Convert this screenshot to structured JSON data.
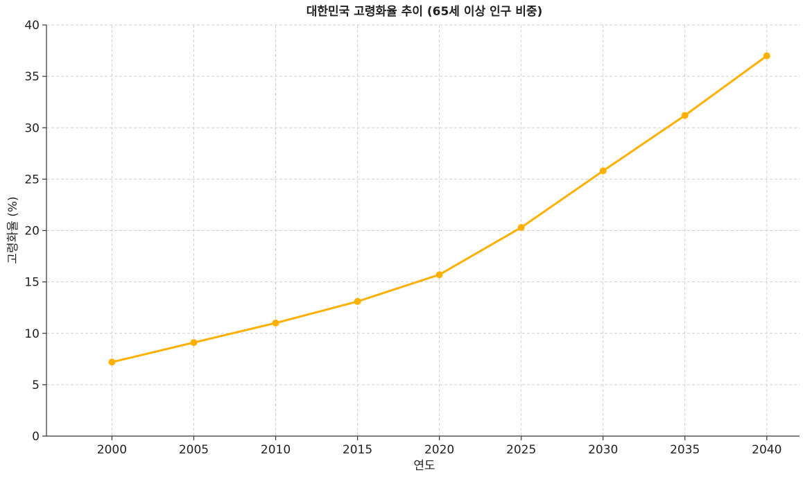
{
  "chart_data": {
    "type": "line",
    "title": "대한민국 고령화율 추이 (65세 이상 인구 비중)",
    "xlabel": "연도",
    "ylabel": "고령화율 (%)",
    "x": [
      2000,
      2005,
      2010,
      2015,
      2020,
      2025,
      2030,
      2035,
      2040
    ],
    "series": [
      {
        "values": [
          7.2,
          9.1,
          11.0,
          13.1,
          15.7,
          20.3,
          25.8,
          31.2,
          37.0
        ],
        "color": "#FFB000"
      }
    ],
    "xlim": [
      1996,
      2042
    ],
    "ylim": [
      0,
      40
    ],
    "yticks": [
      0,
      5,
      10,
      15,
      20,
      25,
      30,
      35,
      40
    ],
    "xticks": [
      2000,
      2005,
      2010,
      2015,
      2020,
      2025,
      2030,
      2035,
      2040
    ],
    "grid": true
  }
}
